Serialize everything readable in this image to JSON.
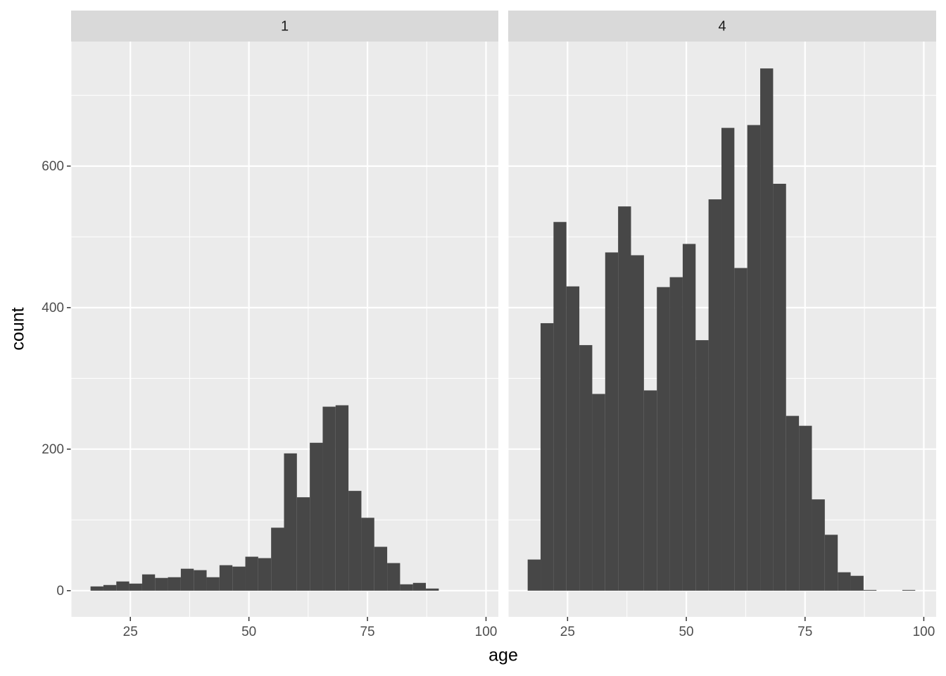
{
  "chart_data": {
    "type": "histogram",
    "x_label": "age",
    "y_label": "count",
    "color": "#474747",
    "grid": true,
    "bins": [
      16.6,
      19.32,
      22.04,
      24.76,
      27.48,
      30.2,
      32.92,
      35.64,
      38.36,
      41.08,
      43.8,
      46.52,
      49.24,
      51.96,
      54.68,
      57.4,
      60.12,
      62.84,
      65.56,
      68.28,
      71.0,
      73.72,
      76.44,
      79.16,
      81.88,
      84.6,
      87.32,
      90.04,
      92.76,
      95.48,
      98.2
    ],
    "xlim": [
      12.5,
      102.6
    ],
    "xticks": [
      25,
      50,
      75,
      100
    ],
    "ylim": [
      -37,
      776
    ],
    "yticks": [
      0,
      200,
      400,
      600
    ],
    "facets": [
      {
        "title": "1",
        "values": [
          6,
          8,
          13,
          10,
          23,
          18,
          19,
          31,
          29,
          19,
          36,
          34,
          48,
          46,
          89,
          194,
          132,
          209,
          260,
          262,
          141,
          103,
          62,
          39,
          9,
          11,
          3,
          0,
          0,
          0
        ]
      },
      {
        "title": "4",
        "values": [
          44,
          378,
          521,
          430,
          347,
          278,
          478,
          543,
          474,
          283,
          429,
          443,
          490,
          354,
          553,
          654,
          456,
          658,
          738,
          575,
          247,
          233,
          129,
          79,
          26,
          21,
          1,
          0,
          0,
          1
        ]
      }
    ]
  }
}
